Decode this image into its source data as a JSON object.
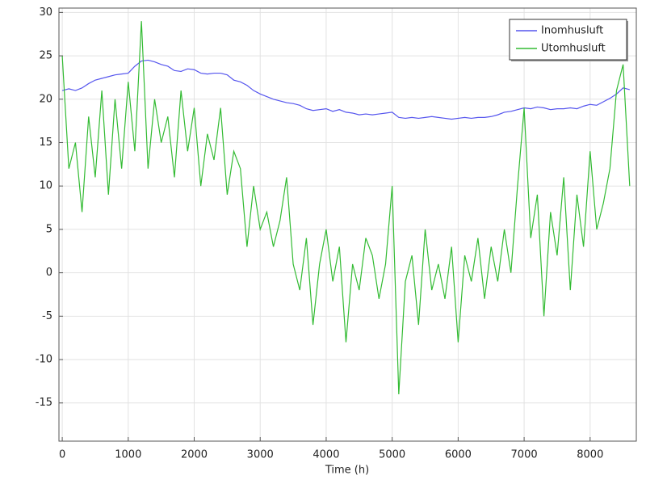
{
  "chart_data": {
    "type": "line",
    "x_label": "Time (h)",
    "x": [
      0,
      100,
      200,
      300,
      400,
      500,
      600,
      700,
      800,
      900,
      1000,
      1100,
      1200,
      1300,
      1400,
      1500,
      1600,
      1700,
      1800,
      1900,
      2000,
      2100,
      2200,
      2300,
      2400,
      2500,
      2600,
      2700,
      2800,
      2900,
      3000,
      3100,
      3200,
      3300,
      3400,
      3500,
      3600,
      3700,
      3800,
      3900,
      4000,
      4100,
      4200,
      4300,
      4400,
      4500,
      4600,
      4700,
      4800,
      4900,
      5000,
      5100,
      5200,
      5300,
      5400,
      5500,
      5600,
      5700,
      5800,
      5900,
      6000,
      6100,
      6200,
      6300,
      6400,
      6500,
      6600,
      6700,
      6800,
      6900,
      7000,
      7100,
      7200,
      7300,
      7400,
      7500,
      7600,
      7700,
      7800,
      7900,
      8000,
      8100,
      8200,
      8300,
      8400,
      8500,
      8600
    ],
    "series": [
      {
        "name": "Inomhusluft",
        "color": "#5555ee",
        "values": [
          21,
          21.2,
          21,
          21.3,
          21.8,
          22.2,
          22.4,
          22.6,
          22.8,
          22.9,
          23,
          23.8,
          24.4,
          24.5,
          24.3,
          24,
          23.8,
          23.3,
          23.2,
          23.5,
          23.4,
          23,
          22.9,
          23,
          23,
          22.8,
          22.2,
          22,
          21.6,
          21,
          20.6,
          20.3,
          20,
          19.8,
          19.6,
          19.5,
          19.3,
          18.9,
          18.7,
          18.8,
          18.9,
          18.6,
          18.8,
          18.5,
          18.4,
          18.2,
          18.3,
          18.2,
          18.3,
          18.4,
          18.5,
          17.9,
          17.8,
          17.9,
          17.8,
          17.9,
          18,
          17.9,
          17.8,
          17.7,
          17.8,
          17.9,
          17.8,
          17.9,
          17.9,
          18,
          18.2,
          18.5,
          18.6,
          18.8,
          19,
          18.9,
          19.1,
          19,
          18.8,
          18.9,
          18.9,
          19,
          18.9,
          19.2,
          19.4,
          19.3,
          19.7,
          20.1,
          20.6,
          21.3,
          21.1
        ]
      },
      {
        "name": "Utomhusluft",
        "color": "#33bb33",
        "values": [
          25,
          12,
          15,
          7,
          18,
          11,
          21,
          9,
          20,
          12,
          22,
          14,
          29,
          12,
          20,
          15,
          18,
          11,
          21,
          14,
          19,
          10,
          16,
          13,
          19,
          9,
          14,
          12,
          3,
          10,
          5,
          7,
          3,
          6,
          11,
          1,
          -2,
          4,
          -6,
          1,
          5,
          -1,
          3,
          -8,
          1,
          -2,
          4,
          2,
          -3,
          1,
          10,
          -14,
          -1,
          2,
          -6,
          5,
          -2,
          1,
          -3,
          3,
          -8,
          2,
          -1,
          4,
          -3,
          3,
          -1,
          5,
          0,
          10,
          19,
          4,
          9,
          -5,
          7,
          2,
          11,
          -2,
          9,
          3,
          14,
          5,
          8,
          12,
          21,
          24,
          10
        ]
      }
    ],
    "xlim": [
      -50,
      8700
    ],
    "ylim": [
      -19.4,
      30.5
    ],
    "xticks": [
      0,
      1000,
      2000,
      3000,
      4000,
      5000,
      6000,
      7000,
      8000
    ],
    "yticks": [
      -15,
      -10,
      -5,
      0,
      5,
      10,
      15,
      20,
      25,
      30
    ],
    "grid": true,
    "legend": "top-right"
  }
}
